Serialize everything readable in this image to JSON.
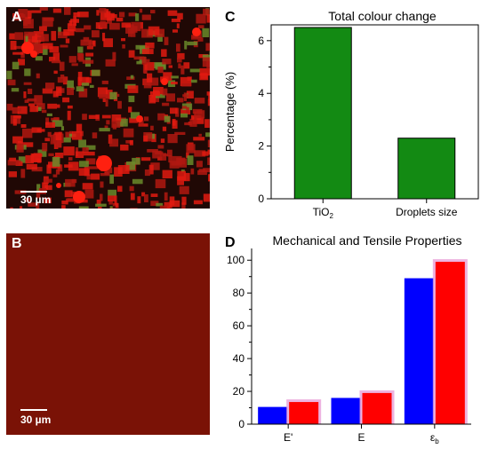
{
  "panels": {
    "A": {
      "letter": "A",
      "scale_label": "30 µm"
    },
    "B": {
      "letter": "B",
      "scale_label": "30 µm"
    }
  },
  "colors": {
    "green_bar": "#138a13",
    "series_blue": "#0000ff",
    "series_red": "#ff0000",
    "red_glow": "#e8a0d8",
    "micro_A_bg": "#200805",
    "micro_A_fg": "#e01a10",
    "micro_B_bg": "#7a1206"
  },
  "chart_data": [
    {
      "panel_letter": "C",
      "type": "bar",
      "title": "Total colour change",
      "ylabel": "Percentage (%)",
      "xlabel": "",
      "categories": [
        {
          "base": "TiO",
          "sub": "2"
        },
        {
          "base": "Droplets size",
          "sub": ""
        }
      ],
      "values": [
        6.5,
        2.3
      ],
      "ylim": [
        0,
        6.6
      ],
      "yticks": [
        0,
        2,
        4,
        6
      ],
      "grid": false
    },
    {
      "panel_letter": "D",
      "type": "bar",
      "title": "Mechanical and Tensile Properties",
      "ylabel": "",
      "xlabel": "",
      "categories": [
        {
          "base": "E'",
          "sub": ""
        },
        {
          "base": "E",
          "sub": ""
        },
        {
          "base": "ε",
          "sub": "b"
        }
      ],
      "series": [
        {
          "values": [
            10.5,
            16,
            89
          ],
          "color": "#0000ff"
        },
        {
          "values": [
            13.5,
            19,
            99
          ],
          "color": "#ff0000"
        }
      ],
      "ylim": [
        0,
        105
      ],
      "yticks": [
        0,
        20,
        40,
        60,
        80,
        100
      ],
      "grid": false
    }
  ]
}
